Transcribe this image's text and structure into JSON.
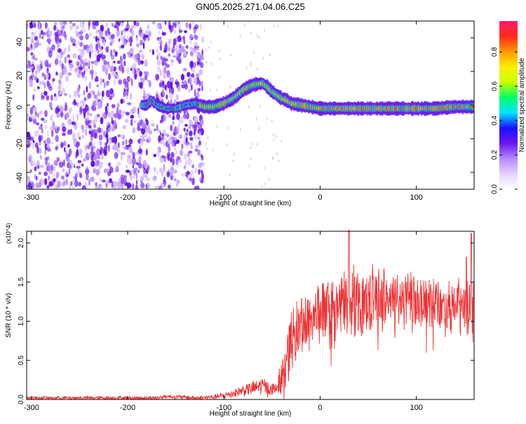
{
  "title": "GN05.2025.271.04.06.C25",
  "colorbar": {
    "label": "Normalized spectral amplitude",
    "ticks": [
      "0.0",
      "0.2",
      "0.4",
      "0.6",
      "0.8"
    ],
    "tick_values": [
      0.0,
      0.2,
      0.4,
      0.6,
      0.8
    ],
    "range": [
      0,
      0.98
    ],
    "colormap": [
      "#ffffff",
      "#e7d2ff",
      "#b488ff",
      "#6a16f0",
      "#1a10ff",
      "#00e5ff",
      "#00ff66",
      "#c8ff00",
      "#ffee00",
      "#ff9900",
      "#ff2a1a",
      "#ff1a6a"
    ]
  },
  "chart_data": [
    {
      "type": "heatmap",
      "name": "spectrogram",
      "xlabel": "Height of straight line (km)",
      "ylabel": "Frequency (Hz)",
      "xlim": [
        -305,
        160
      ],
      "ylim": [
        -50,
        50
      ],
      "xticks": [
        -300,
        -200,
        -100,
        0,
        100
      ],
      "xtick_labels": [
        "-300",
        "-200",
        "-100",
        "0",
        "100"
      ],
      "yticks": [
        -40,
        -20,
        0,
        20,
        40
      ],
      "ytick_labels": [
        "-40",
        "-20",
        "0",
        "20",
        "40"
      ],
      "noise_region_x": [
        -305,
        -122
      ],
      "blank_column_x": [
        -178,
        -170
      ],
      "ridge": {
        "x": [
          -180,
          -175,
          -170,
          -160,
          -150,
          -140,
          -130,
          -120,
          -110,
          -100,
          -90,
          -80,
          -70,
          -60,
          -55,
          -50,
          -45,
          -40,
          -35,
          -30,
          -20,
          -10,
          0,
          20,
          40,
          60,
          80,
          100,
          120,
          140,
          160
        ],
        "frequency_hz": [
          0,
          3,
          0,
          -2,
          -2,
          0,
          1,
          -1,
          -1,
          1,
          4,
          9,
          12,
          13,
          11,
          8,
          6,
          4,
          3,
          1,
          0,
          -1,
          -2,
          -2,
          -2,
          -2,
          -2,
          -2,
          -2,
          -1,
          -1
        ]
      }
    },
    {
      "type": "line",
      "name": "snr",
      "xlabel": "Height of straight line (km)",
      "ylabel": "SNR (10 * v/v)",
      "y_multiplier": "(x10^4)",
      "xlim": [
        -305,
        160
      ],
      "ylim": [
        0,
        2.15
      ],
      "xticks": [
        -300,
        -200,
        -100,
        0,
        100
      ],
      "xtick_labels": [
        "-300",
        "-200",
        "-100",
        "0",
        "100"
      ],
      "yticks": [
        0,
        0.5,
        1.0,
        1.5,
        2.0
      ],
      "ytick_labels": [
        "0.0",
        "0.5",
        "1.0",
        "1.5",
        "2.0"
      ],
      "color": "#ee3333",
      "envelope": {
        "x": [
          -305,
          -170,
          -160,
          -130,
          -110,
          -100,
          -90,
          -80,
          -70,
          -60,
          -50,
          -45,
          -40,
          -35,
          -30,
          -20,
          -10,
          0,
          20,
          40,
          60,
          80,
          100,
          120,
          140,
          160
        ],
        "snr": [
          0.02,
          0.02,
          0.04,
          0.02,
          0.03,
          0.05,
          0.08,
          0.12,
          0.14,
          0.18,
          0.12,
          0.15,
          0.3,
          0.55,
          0.75,
          0.95,
          1.05,
          1.12,
          1.2,
          1.28,
          1.3,
          1.28,
          1.26,
          1.22,
          1.2,
          1.12
        ]
      },
      "spread": {
        "x": [
          -305,
          -110,
          -90,
          -70,
          -60,
          -45,
          -40,
          -35,
          -30,
          -20,
          -10,
          0,
          20,
          40,
          60,
          100,
          160
        ],
        "amplitude": [
          0.02,
          0.03,
          0.06,
          0.09,
          0.12,
          0.08,
          0.25,
          0.35,
          0.4,
          0.42,
          0.42,
          0.4,
          0.42,
          0.42,
          0.4,
          0.35,
          0.38
        ]
      },
      "peaks": [
        {
          "x": 30,
          "snr": 2.18
        },
        {
          "x": 157,
          "snr": 2.12
        },
        {
          "x": 152,
          "snr": 1.82
        }
      ]
    }
  ]
}
